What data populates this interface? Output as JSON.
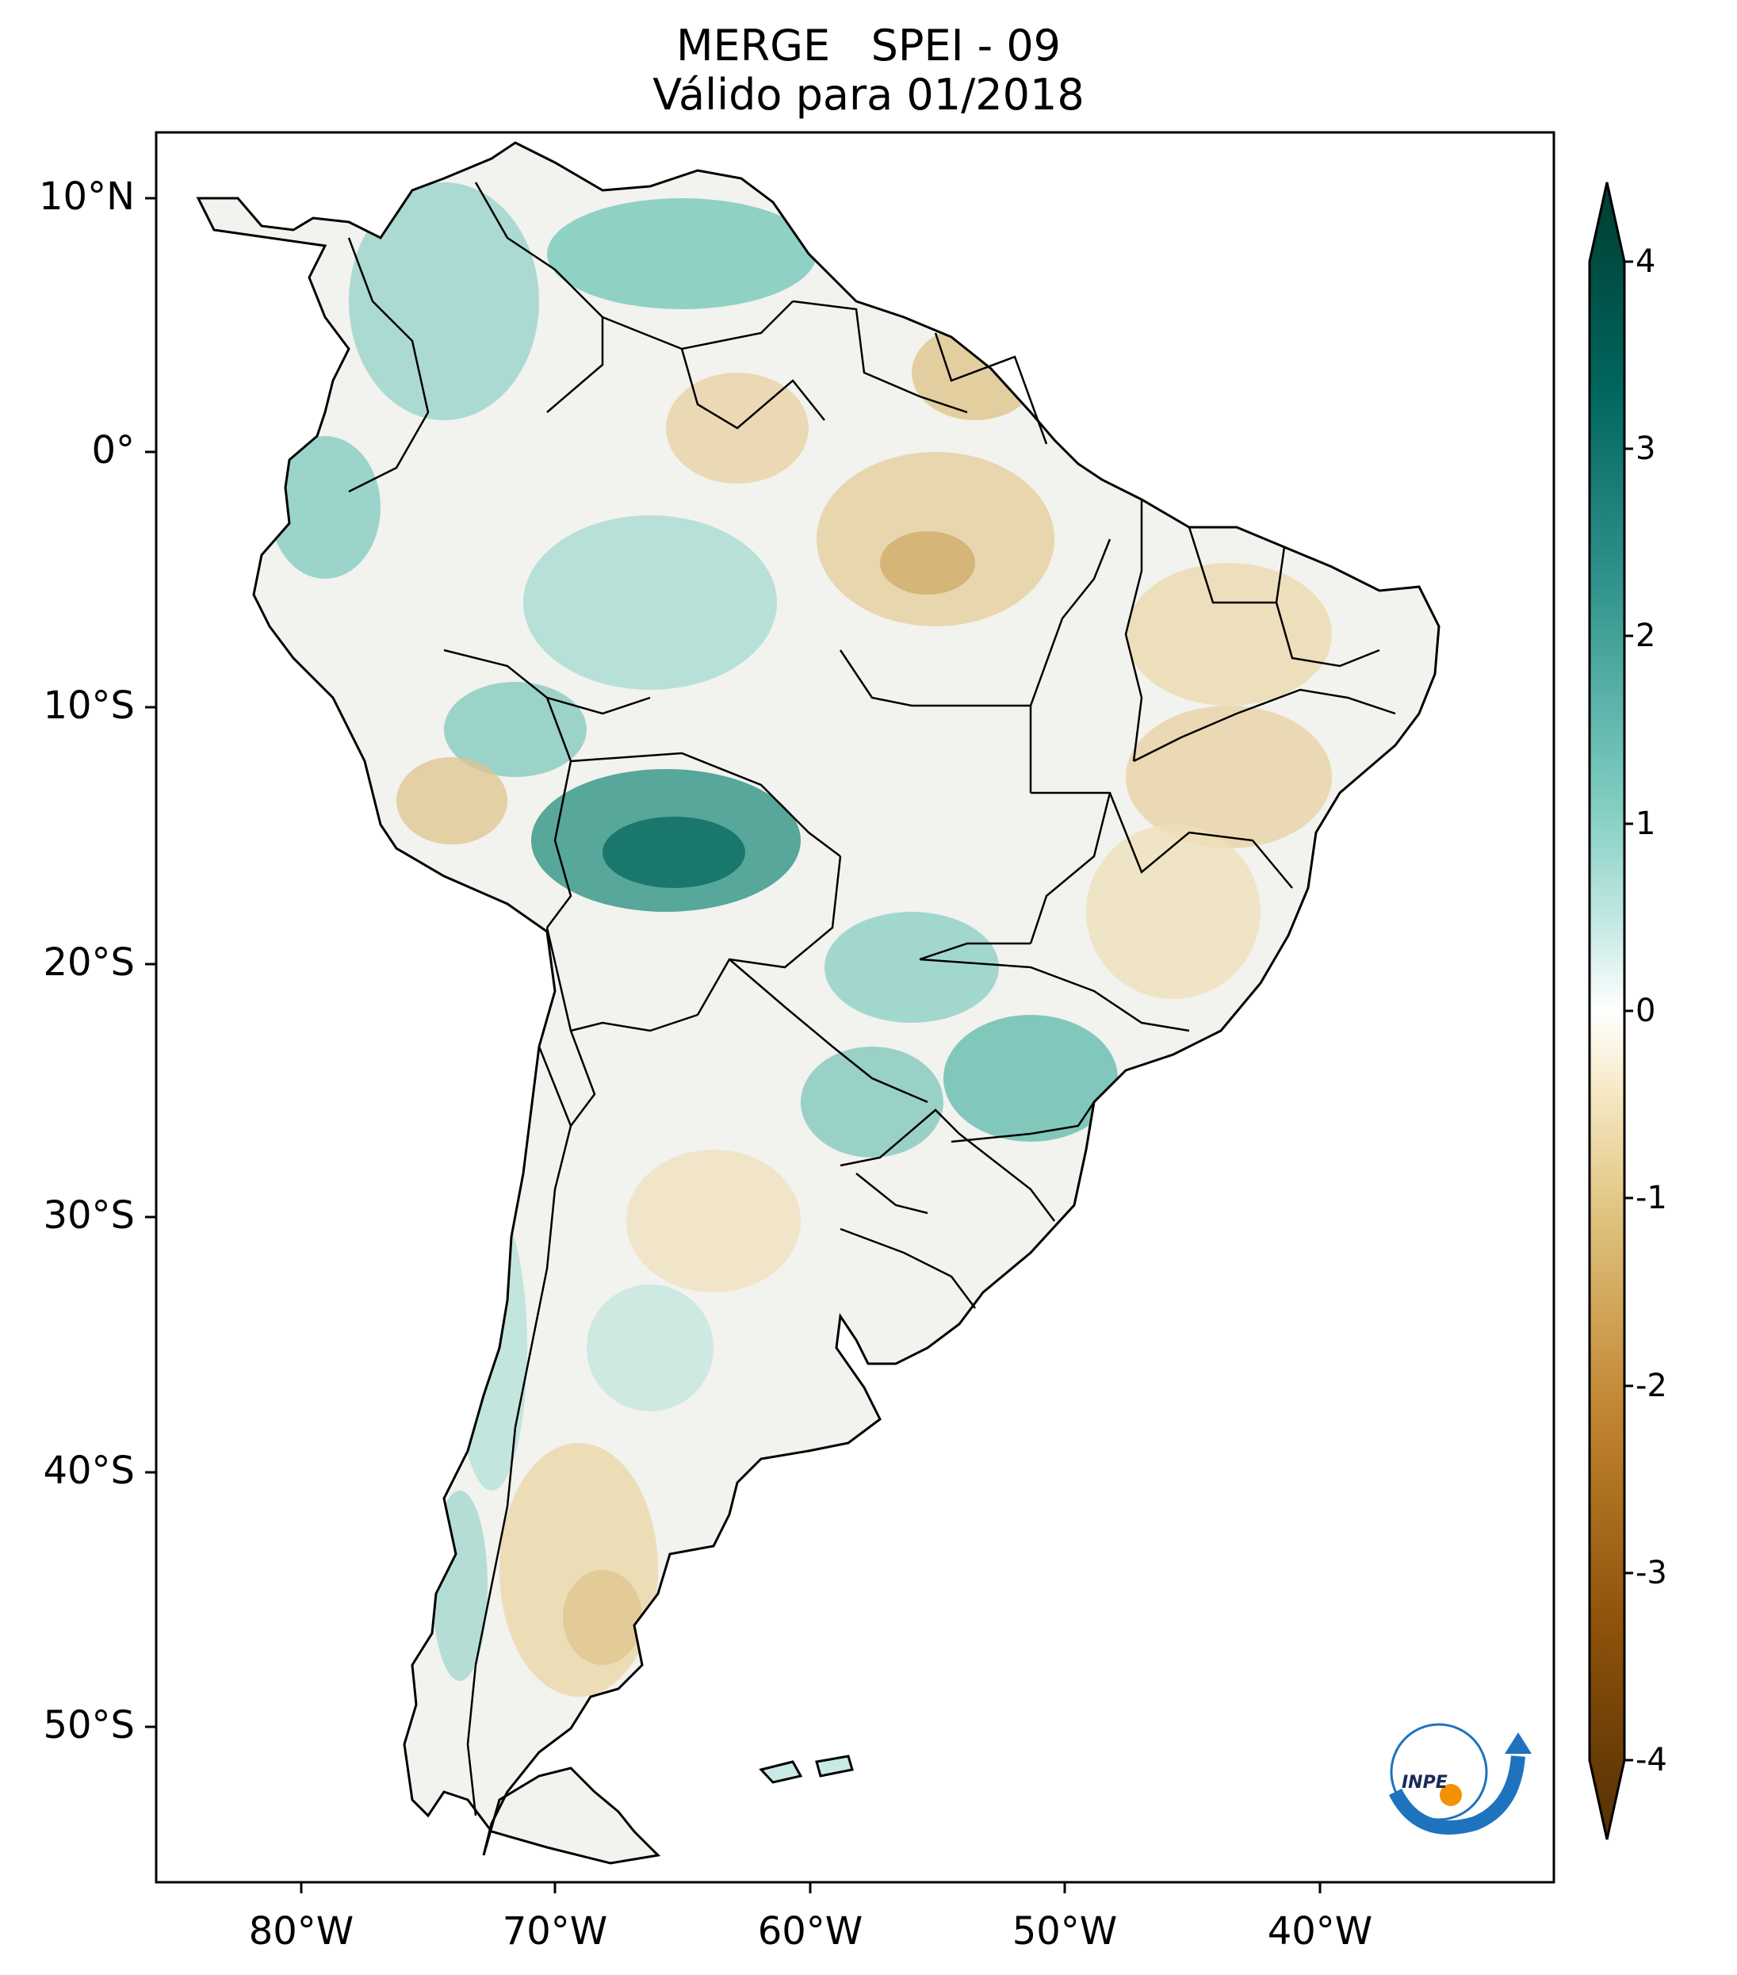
{
  "title": {
    "line1": "MERGE   SPEI - 09",
    "line2": "Válido para 01/2018"
  },
  "map": {
    "region": "South America",
    "latitude_labels": [
      "10°N",
      "0°",
      "10°S",
      "20°S",
      "30°S",
      "40°S",
      "50°S"
    ],
    "longitude_labels": [
      "80°W",
      "70°W",
      "60°W",
      "50°W",
      "40°W"
    ],
    "palette": {
      "wet_strong": "#01665e",
      "wet_mid": "#5ab4ac",
      "wet_light": "#c7eae5",
      "neutral": "#f5f5f5",
      "dry_light": "#f6e8c3",
      "dry_mid": "#d8b365",
      "dry_strong": "#8c510a",
      "border": "#000000"
    }
  },
  "colorbar": {
    "ticks": [
      "4",
      "3",
      "2",
      "1",
      "0",
      "-1",
      "-2",
      "-3",
      "-4"
    ],
    "min": -4,
    "max": 4,
    "extend": "both",
    "colormap": "BrBG"
  },
  "logo": {
    "text": "INPE",
    "icon": "inpe-logo-icon"
  }
}
